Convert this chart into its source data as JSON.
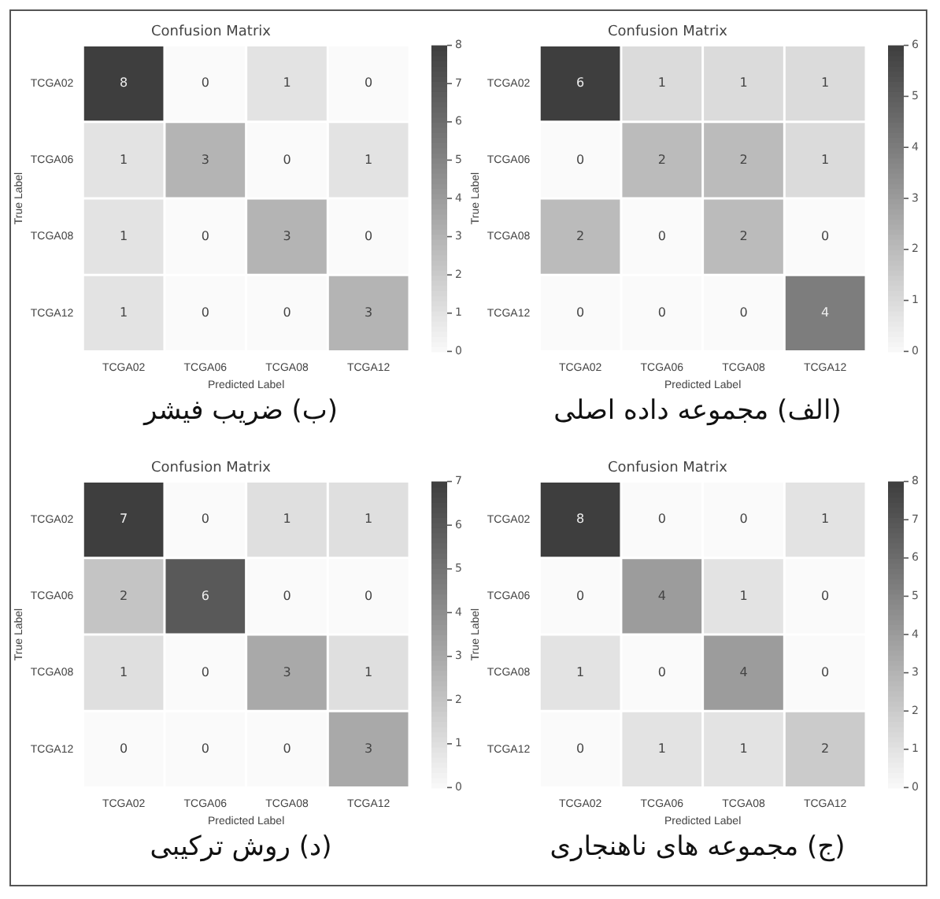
{
  "chart_data": [
    {
      "type": "heatmap",
      "title": "Confusion Matrix",
      "xlabel": "Predicted Label",
      "ylabel": "True Label",
      "categories": [
        "TCGA02",
        "TCGA06",
        "TCGA08",
        "TCGA12"
      ],
      "y_categories": [
        "TCGA02",
        "TCGA06",
        "TCGA08",
        "TCGA12"
      ],
      "cells": [
        [
          6,
          1,
          1,
          1
        ],
        [
          0,
          2,
          2,
          1
        ],
        [
          2,
          0,
          2,
          0
        ],
        [
          0,
          0,
          0,
          4
        ]
      ],
      "clim": [
        0,
        6
      ],
      "cticks": [
        0,
        1,
        2,
        3,
        4,
        5,
        6
      ],
      "data_labels": true,
      "annotations": [
        "(الف) مجموعه داده اصلی"
      ]
    },
    {
      "type": "heatmap",
      "title": "Confusion Matrix",
      "xlabel": "Predicted Label",
      "ylabel": "True Label",
      "categories": [
        "TCGA02",
        "TCGA06",
        "TCGA08",
        "TCGA12"
      ],
      "y_categories": [
        "TCGA02",
        "TCGA06",
        "TCGA08",
        "TCGA12"
      ],
      "cells": [
        [
          8,
          0,
          1,
          0
        ],
        [
          1,
          3,
          0,
          1
        ],
        [
          1,
          0,
          3,
          0
        ],
        [
          1,
          0,
          0,
          3
        ]
      ],
      "clim": [
        0,
        8
      ],
      "cticks": [
        0,
        1,
        2,
        3,
        4,
        5,
        6,
        7,
        8
      ],
      "data_labels": true,
      "annotations": [
        "(ب) ضریب فیشر"
      ]
    },
    {
      "type": "heatmap",
      "title": "Confusion Matrix",
      "xlabel": "Predicted Label",
      "ylabel": "True Label",
      "categories": [
        "TCGA02",
        "TCGA06",
        "TCGA08",
        "TCGA12"
      ],
      "y_categories": [
        "TCGA02",
        "TCGA06",
        "TCGA08",
        "TCGA12"
      ],
      "cells": [
        [
          8,
          0,
          0,
          1
        ],
        [
          0,
          4,
          1,
          0
        ],
        [
          1,
          0,
          4,
          0
        ],
        [
          0,
          1,
          1,
          2
        ]
      ],
      "clim": [
        0,
        8
      ],
      "cticks": [
        0,
        1,
        2,
        3,
        4,
        5,
        6,
        7,
        8
      ],
      "data_labels": true,
      "annotations": [
        "(ج) مجموعه های ناهنجاری"
      ]
    },
    {
      "type": "heatmap",
      "title": "Confusion Matrix",
      "xlabel": "Predicted Label",
      "ylabel": "True Label",
      "categories": [
        "TCGA02",
        "TCGA06",
        "TCGA08",
        "TCGA12"
      ],
      "y_categories": [
        "TCGA02",
        "TCGA06",
        "TCGA08",
        "TCGA12"
      ],
      "cells": [
        [
          7,
          0,
          1,
          1
        ],
        [
          2,
          6,
          0,
          0
        ],
        [
          1,
          0,
          3,
          1
        ],
        [
          0,
          0,
          0,
          3
        ]
      ],
      "clim": [
        0,
        7
      ],
      "cticks": [
        0,
        1,
        2,
        3,
        4,
        5,
        6,
        7
      ],
      "data_labels": true,
      "annotations": [
        "(د) روش ترکیبی"
      ]
    }
  ]
}
